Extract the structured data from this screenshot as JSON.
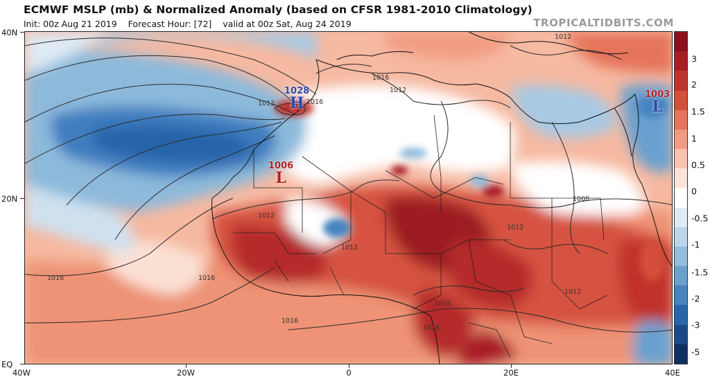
{
  "header": {
    "title": "ECMWF MSLP (mb) & Normalized Anomaly (based on CFSR 1981-2010 Climatology)",
    "init": "Init: 00z Aug 21 2019",
    "forecast_hour": "Forecast Hour: [72]",
    "valid": "valid at 00z Sat, Aug 24 2019",
    "brand": "TROPICALTIDBITS.COM"
  },
  "axes": {
    "lat_labels": [
      "40N",
      "20N",
      "EQ"
    ],
    "lon_labels": [
      "40W",
      "20W",
      "0",
      "20E",
      "40E"
    ]
  },
  "colorbar": {
    "labels": [
      "3",
      "2",
      "1.5",
      "1",
      "0.5",
      "0",
      "-0.5",
      "-1",
      "-1.5",
      "-2",
      "-3",
      "-5"
    ],
    "colors": [
      "#8b0f1c",
      "#a81d25",
      "#c0322b",
      "#d4503a",
      "#e5745a",
      "#f19c82",
      "#f8c3b0",
      "#fce4da",
      "#ffffff",
      "#dfeaf4",
      "#bcd5ea",
      "#93bcdd",
      "#6aa0cf",
      "#4683bf",
      "#2965a9",
      "#1b4a8a",
      "#102f63"
    ]
  },
  "pressure_centers": [
    {
      "value": "1028",
      "symbol": "H",
      "color": "#2b4aa8"
    },
    {
      "value": "1006",
      "symbol": "L",
      "color": "#b22222"
    },
    {
      "value": "1003",
      "symbol": "L",
      "color": "#b22222"
    }
  ],
  "isobar_labels": [
    "1012",
    "1016",
    "1016",
    "1012",
    "1012",
    "1012",
    "1016",
    "1016",
    "1016",
    "1016",
    "1012",
    "1012",
    "1008",
    "1012",
    "1016"
  ],
  "colors": {
    "background": "#ffffff",
    "frame": "#222222",
    "brand": "#9a9a9a"
  }
}
